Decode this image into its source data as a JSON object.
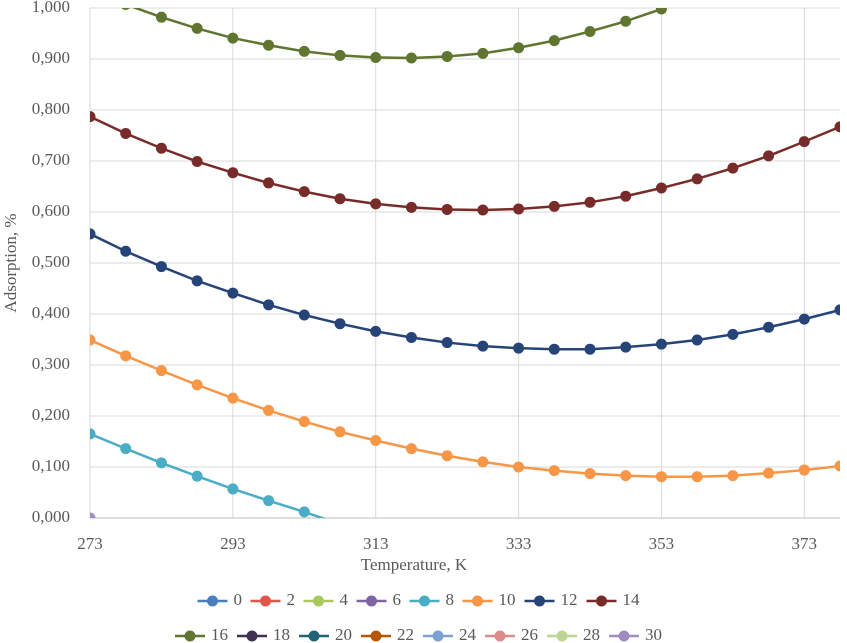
{
  "chart_data": {
    "type": "line",
    "xlabel": "Temperature, K",
    "ylabel": "Adsorption, %",
    "x": [
      273,
      278,
      283,
      288,
      293,
      298,
      303,
      308,
      313,
      318,
      323,
      328,
      333,
      338,
      343,
      348,
      353,
      358,
      363,
      368,
      373,
      378
    ],
    "xlim": [
      273,
      378
    ],
    "xticks": [
      273,
      293,
      313,
      333,
      353,
      373
    ],
    "ylim": [
      0,
      1
    ],
    "yticks": [
      {
        "value": 0,
        "label": "0,000"
      },
      {
        "value": 0.1,
        "label": "0,100"
      },
      {
        "value": 0.2,
        "label": "0,200"
      },
      {
        "value": 0.3,
        "label": "0,300"
      },
      {
        "value": 0.4,
        "label": "0,400"
      },
      {
        "value": 0.5,
        "label": "0,500"
      },
      {
        "value": 0.6,
        "label": "0,600"
      },
      {
        "value": 0.7,
        "label": "0,700"
      },
      {
        "value": 0.8,
        "label": "0,800"
      },
      {
        "value": 0.9,
        "label": "0,900"
      },
      {
        "value": 1,
        "label": "1,000"
      }
    ],
    "grid": true,
    "legend": "bottom",
    "series": [
      {
        "name": "0",
        "color": "#4a7ebb",
        "values": [
          null,
          null,
          null,
          null,
          null,
          null,
          null,
          null,
          null,
          null,
          null,
          null,
          null,
          null,
          null,
          null,
          null,
          null,
          null,
          null,
          null,
          null
        ]
      },
      {
        "name": "2",
        "color": "#e0574a",
        "values": [
          null,
          null,
          null,
          null,
          null,
          null,
          null,
          null,
          null,
          null,
          null,
          null,
          null,
          null,
          null,
          null,
          null,
          null,
          null,
          null,
          null,
          null
        ]
      },
      {
        "name": "4",
        "color": "#a9c95e",
        "values": [
          null,
          null,
          null,
          null,
          null,
          null,
          null,
          null,
          null,
          null,
          null,
          null,
          null,
          null,
          null,
          null,
          null,
          null,
          null,
          null,
          null,
          null
        ]
      },
      {
        "name": "6",
        "color": "#8064a2",
        "values": [
          null,
          null,
          null,
          null,
          null,
          null,
          null,
          null,
          null,
          null,
          null,
          null,
          null,
          null,
          null,
          null,
          null,
          null,
          null,
          null,
          null,
          null
        ]
      },
      {
        "name": "8",
        "color": "#4bacc6",
        "values": [
          0.165,
          0.136,
          0.108,
          0.082,
          0.057,
          0.034,
          0.012,
          -0.012,
          null,
          null,
          null,
          null,
          null,
          null,
          null,
          null,
          null,
          null,
          null,
          null,
          null,
          null
        ]
      },
      {
        "name": "10",
        "color": "#f79646",
        "values": [
          0.349,
          0.318,
          0.289,
          0.261,
          0.235,
          0.211,
          0.189,
          0.169,
          0.152,
          0.136,
          0.122,
          0.11,
          0.1,
          0.093,
          0.087,
          0.083,
          0.081,
          0.081,
          0.083,
          0.088,
          0.094,
          0.102
        ]
      },
      {
        "name": "12",
        "color": "#264478",
        "values": [
          0.557,
          0.523,
          0.493,
          0.465,
          0.441,
          0.418,
          0.398,
          0.381,
          0.366,
          0.354,
          0.344,
          0.337,
          0.333,
          0.331,
          0.331,
          0.335,
          0.341,
          0.349,
          0.36,
          0.374,
          0.39,
          0.408
        ]
      },
      {
        "name": "14",
        "color": "#772c2a",
        "values": [
          0.787,
          0.754,
          0.725,
          0.699,
          0.677,
          0.657,
          0.64,
          0.626,
          0.616,
          0.609,
          0.605,
          0.604,
          0.606,
          0.611,
          0.619,
          0.631,
          0.647,
          0.665,
          0.686,
          0.71,
          0.738,
          0.767
        ]
      },
      {
        "name": "16",
        "color": "#5f7530",
        "values": [
          1.035,
          1.007,
          0.982,
          0.96,
          0.941,
          0.927,
          0.915,
          0.907,
          0.903,
          0.902,
          0.905,
          0.911,
          0.922,
          0.936,
          0.954,
          0.974,
          0.998,
          1.025,
          null,
          null,
          null,
          null
        ]
      },
      {
        "name": "18",
        "color": "#403152",
        "values": [
          null,
          null,
          null,
          null,
          null,
          null,
          null,
          null,
          null,
          null,
          null,
          null,
          null,
          null,
          null,
          null,
          null,
          null,
          null,
          null,
          null,
          null
        ]
      },
      {
        "name": "20",
        "color": "#1f6478",
        "values": [
          null,
          null,
          null,
          null,
          null,
          null,
          null,
          null,
          null,
          null,
          null,
          null,
          null,
          null,
          null,
          null,
          null,
          null,
          null,
          null,
          null,
          null
        ]
      },
      {
        "name": "22",
        "color": "#b65708",
        "values": [
          null,
          null,
          null,
          null,
          null,
          null,
          null,
          null,
          null,
          null,
          null,
          null,
          null,
          null,
          null,
          null,
          null,
          null,
          null,
          null,
          null,
          null
        ]
      },
      {
        "name": "24",
        "color": "#7ba0d4",
        "values": [
          null,
          null,
          null,
          null,
          null,
          null,
          null,
          null,
          null,
          null,
          null,
          null,
          null,
          null,
          null,
          null,
          null,
          null,
          null,
          null,
          null,
          null
        ]
      },
      {
        "name": "26",
        "color": "#dc8c89",
        "values": [
          null,
          null,
          null,
          null,
          null,
          null,
          null,
          null,
          null,
          null,
          null,
          null,
          null,
          null,
          null,
          null,
          null,
          null,
          null,
          null,
          null,
          null
        ]
      },
      {
        "name": "28",
        "color": "#bcd592",
        "values": [
          null,
          null,
          null,
          null,
          null,
          null,
          null,
          null,
          null,
          null,
          null,
          null,
          null,
          null,
          null,
          null,
          null,
          null,
          null,
          null,
          null,
          null
        ]
      },
      {
        "name": "30",
        "color": "#a08cc0",
        "values": [
          0,
          null,
          null,
          null,
          null,
          null,
          null,
          null,
          null,
          null,
          null,
          null,
          null,
          null,
          null,
          null,
          null,
          null,
          null,
          null,
          null,
          null
        ]
      }
    ]
  }
}
